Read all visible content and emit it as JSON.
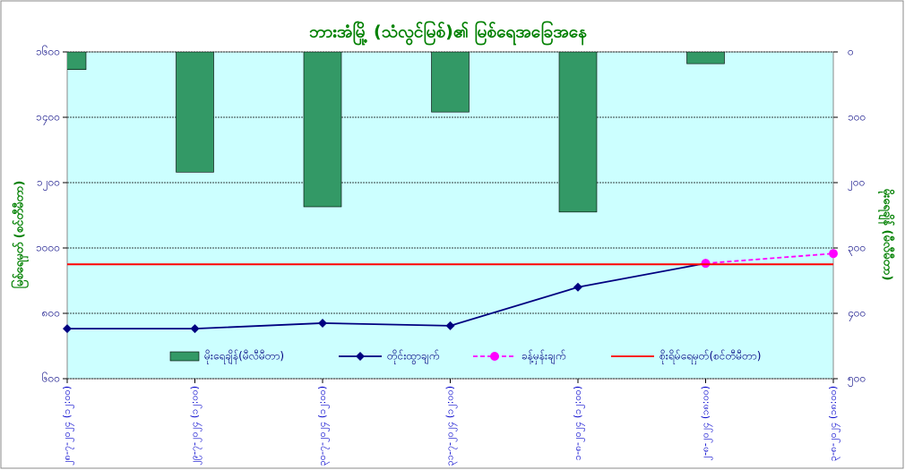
{
  "chart_data": {
    "type": "combo",
    "title": "ဘားအံမြို့ (သံလွင်မြစ်)၏ မြစ်ရေအခြေအနေ",
    "ylabel": "မြစ်ရေမှတ် (စင်တီမီတာ)",
    "y2label": "မိုးရေချိန် (မီလီမီတာ)",
    "categories": [
      "၂၈-၇-၂၀၂၄ (၁၂:၀၀)",
      "၂၉-၇-၂၀၂၄ (၁၂:၀၀)",
      "၃၀-၇-၂၀၂၄ (၁၂:၀၀)",
      "၃၁-၇-၂၀၂၄ (၁၂:၀၀)",
      "၁-၈-၂၀၂၄ (၁၂:၀၀)",
      "၂-၈-၂၀၂၄ (၁၈:၀၀)",
      "၃-၈-၂၀၂၄ (၁၈:၀၀)"
    ],
    "ylim": [
      600,
      1600
    ],
    "yticks": [
      {
        "value": 600,
        "label": "၆၀၀"
      },
      {
        "value": 800,
        "label": "၈၀၀"
      },
      {
        "value": 1000,
        "label": "၁၀၀၀"
      },
      {
        "value": 1200,
        "label": "၁၂၀၀"
      },
      {
        "value": 1400,
        "label": "၁၄၀၀"
      },
      {
        "value": 1600,
        "label": "၁၆၀၀"
      }
    ],
    "y2lim": [
      500,
      0
    ],
    "y2ticks": [
      {
        "value": 0,
        "label": "၀"
      },
      {
        "value": 100,
        "label": "၁၀၀"
      },
      {
        "value": 200,
        "label": "၂၀၀"
      },
      {
        "value": 300,
        "label": "၃၀၀"
      },
      {
        "value": 400,
        "label": "၄၀၀"
      },
      {
        "value": 500,
        "label": "၅၀၀"
      }
    ],
    "grid": true,
    "series": [
      {
        "name": "မိုးရေချိန်(မီလီမီတာ)",
        "type": "bar",
        "axis": "y2",
        "color": "#339966",
        "values": [
          27,
          184,
          237,
          92,
          245,
          18,
          null
        ]
      },
      {
        "name": "တိုင်းထွာချက်",
        "type": "line",
        "color": "#000080",
        "values": [
          753,
          753,
          770,
          762,
          880,
          953,
          null
        ]
      },
      {
        "name": "ခန့်မှန်းချက်",
        "type": "dashed",
        "color": "#ff00ff",
        "values": [
          null,
          null,
          null,
          null,
          null,
          953,
          983
        ]
      },
      {
        "name": "စိုးရိမ်ရေမှတ်(စင်တီမီတာ)",
        "type": "flat",
        "color": "#ff0000",
        "values": [
          950,
          950,
          950,
          950,
          950,
          950,
          950
        ]
      }
    ]
  }
}
